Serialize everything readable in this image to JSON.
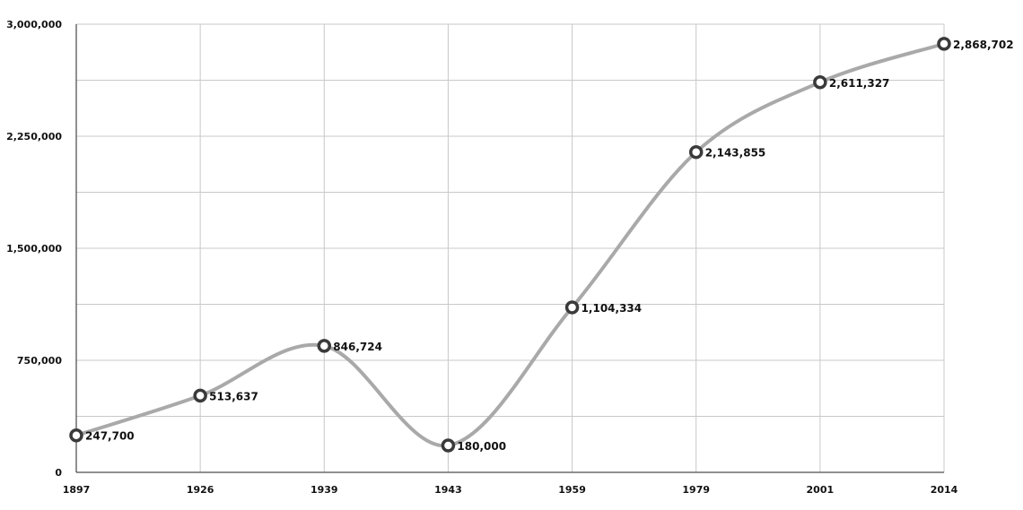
{
  "chart_data": {
    "type": "line",
    "title": "",
    "xlabel": "",
    "ylabel": "",
    "categories": [
      "1897",
      "1926",
      "1939",
      "1943",
      "1959",
      "1979",
      "2001",
      "2014"
    ],
    "series": [
      {
        "values": [
          247700,
          513637,
          846724,
          180000,
          1104334,
          2143855,
          2611327,
          2868702
        ]
      }
    ],
    "data_labels": [
      "247,700",
      "513,637",
      "846,724",
      "180,000",
      "1,104,334",
      "2,143,855",
      "2,611,327",
      "2,868,702"
    ],
    "ylim": [
      0,
      3000000
    ],
    "y_ticks": [
      0,
      750000,
      1500000,
      2250000,
      3000000
    ],
    "y_tick_labels": [
      "0",
      "750,000",
      "1,500,000",
      "2,250,000",
      "3,000,000"
    ],
    "y_minor_step": 375000,
    "grid": true,
    "line_color": "#a9a9a9",
    "marker_edge_color": "#3a3a3a",
    "marker_fill_color": "#ffffff",
    "grid_color": "#c8c8c8",
    "axis_color": "#222222"
  }
}
